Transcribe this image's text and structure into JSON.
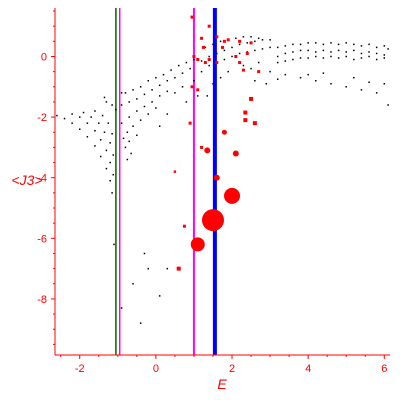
{
  "chart_data": {
    "type": "scatter",
    "xlabel": "E",
    "ylabel": "<J3>",
    "xlim": [
      -2.65,
      6.15
    ],
    "ylim": [
      -9.85,
      1.6
    ],
    "xticks": [
      -2,
      0,
      2,
      4,
      6
    ],
    "yticks": [
      0,
      -2,
      -4,
      -6,
      -8
    ],
    "grid": false,
    "colors": {
      "axis": "#ff0000",
      "black_series": "#000000",
      "red_series": "#ff0000"
    },
    "vlines": [
      {
        "x": -1.05,
        "color": "#006400",
        "width": 1.5
      },
      {
        "x": -0.95,
        "color": "#ff00ff",
        "width": 1.5
      },
      {
        "x": 1.0,
        "color": "#ff00ff",
        "width": 2
      },
      {
        "x": 1.55,
        "color": "#0000ff",
        "width": 4
      }
    ],
    "series": [
      {
        "color": "#000000",
        "points": [
          [
            -2.6,
            -1.95
          ],
          [
            -2.4,
            -2.05
          ],
          [
            -2.2,
            -2.2
          ],
          [
            -2.0,
            -2.4
          ],
          [
            -1.8,
            -2.65
          ],
          [
            -1.6,
            -2.95
          ],
          [
            -1.45,
            -3.3
          ],
          [
            -1.3,
            -3.7
          ],
          [
            -1.2,
            -4.1
          ],
          [
            -1.15,
            -4.5
          ],
          [
            -2.2,
            -1.9
          ],
          [
            -2.0,
            -2.0
          ],
          [
            -1.8,
            -2.2
          ],
          [
            -1.6,
            -2.45
          ],
          [
            -1.45,
            -2.75
          ],
          [
            -1.3,
            -3.1
          ],
          [
            -1.2,
            -3.5
          ],
          [
            -1.12,
            -3.9
          ],
          [
            -1.9,
            -1.85
          ],
          [
            -1.7,
            -2.0
          ],
          [
            -1.5,
            -2.2
          ],
          [
            -1.35,
            -2.5
          ],
          [
            -1.2,
            -2.85
          ],
          [
            -1.12,
            -3.25
          ],
          [
            -1.6,
            -1.8
          ],
          [
            -1.4,
            -1.95
          ],
          [
            -1.25,
            -2.2
          ],
          [
            -1.15,
            -2.55
          ],
          [
            -1.3,
            -1.5
          ],
          [
            -1.15,
            -1.6
          ],
          [
            -1.05,
            -1.75
          ],
          [
            -1.35,
            -1.35
          ],
          [
            -0.8,
            -1.2
          ],
          [
            -0.6,
            -1.1
          ],
          [
            -0.4,
            -1.0
          ],
          [
            -0.2,
            -0.8
          ],
          [
            0.0,
            -0.7
          ],
          [
            0.2,
            -0.6
          ],
          [
            0.4,
            -0.45
          ],
          [
            0.6,
            -0.3
          ],
          [
            0.8,
            -0.2
          ],
          [
            1.0,
            -0.1
          ],
          [
            -0.7,
            -1.5
          ],
          [
            -0.5,
            -1.4
          ],
          [
            -0.3,
            -1.25
          ],
          [
            -0.1,
            -1.1
          ],
          [
            0.1,
            -0.95
          ],
          [
            0.3,
            -0.8
          ],
          [
            0.5,
            -0.7
          ],
          [
            0.7,
            -0.55
          ],
          [
            0.9,
            -0.4
          ],
          [
            -0.7,
            -2.0
          ],
          [
            -0.5,
            -1.8
          ],
          [
            -0.3,
            -1.65
          ],
          [
            -0.1,
            -1.5
          ],
          [
            0.1,
            -1.3
          ],
          [
            0.3,
            -1.15
          ],
          [
            -0.75,
            -2.5
          ],
          [
            -0.6,
            -2.3
          ],
          [
            -0.4,
            -2.1
          ],
          [
            -0.2,
            -1.9
          ],
          [
            0.0,
            -1.7
          ],
          [
            -0.8,
            -3.0
          ],
          [
            -0.7,
            -2.8
          ],
          [
            -0.5,
            -2.6
          ],
          [
            -0.75,
            -3.4
          ],
          [
            -0.65,
            -3.2
          ],
          [
            -0.9,
            -1.2
          ],
          [
            -0.9,
            -1.6
          ],
          [
            -0.9,
            -2.2
          ],
          [
            -0.85,
            -2.7
          ],
          [
            0.5,
            -1.2
          ],
          [
            0.7,
            -1.0
          ],
          [
            0.8,
            -1.5
          ],
          [
            1.0,
            -0.8
          ],
          [
            0.3,
            -1.9
          ],
          [
            0.1,
            -2.3
          ],
          [
            1.2,
            -0.5
          ],
          [
            1.4,
            -0.3
          ],
          [
            1.6,
            -0.2
          ],
          [
            1.8,
            -0.1
          ],
          [
            2.0,
            0.0
          ],
          [
            2.2,
            0.1
          ],
          [
            2.4,
            0.15
          ],
          [
            2.6,
            0.2
          ],
          [
            2.8,
            0.25
          ],
          [
            3.0,
            0.3
          ],
          [
            1.2,
            -0.15
          ],
          [
            1.4,
            0.0
          ],
          [
            1.6,
            0.1
          ],
          [
            1.8,
            0.2
          ],
          [
            2.0,
            0.3
          ],
          [
            2.2,
            0.4
          ],
          [
            2.4,
            0.45
          ],
          [
            2.6,
            0.5
          ],
          [
            2.8,
            0.55
          ],
          [
            3.0,
            0.55
          ],
          [
            1.3,
            0.3
          ],
          [
            1.5,
            0.4
          ],
          [
            1.7,
            0.5
          ],
          [
            1.9,
            0.55
          ],
          [
            2.1,
            0.6
          ],
          [
            2.3,
            0.65
          ],
          [
            2.5,
            0.65
          ],
          [
            2.7,
            0.6
          ],
          [
            3.2,
            0.3
          ],
          [
            3.4,
            0.35
          ],
          [
            3.6,
            0.4
          ],
          [
            3.8,
            0.4
          ],
          [
            4.0,
            0.45
          ],
          [
            4.2,
            0.45
          ],
          [
            4.4,
            0.4
          ],
          [
            4.6,
            0.45
          ],
          [
            4.8,
            0.4
          ],
          [
            5.0,
            0.45
          ],
          [
            5.2,
            0.4
          ],
          [
            5.4,
            0.35
          ],
          [
            5.6,
            0.4
          ],
          [
            5.8,
            0.3
          ],
          [
            6.0,
            0.35
          ],
          [
            6.1,
            0.25
          ],
          [
            3.2,
            0.0
          ],
          [
            3.4,
            0.1
          ],
          [
            3.6,
            0.15
          ],
          [
            3.8,
            0.2
          ],
          [
            4.0,
            0.2
          ],
          [
            4.2,
            0.15
          ],
          [
            4.4,
            0.2
          ],
          [
            4.6,
            0.15
          ],
          [
            4.8,
            0.2
          ],
          [
            5.0,
            0.15
          ],
          [
            5.2,
            0.2
          ],
          [
            5.4,
            0.1
          ],
          [
            5.6,
            0.15
          ],
          [
            5.8,
            0.1
          ],
          [
            6.0,
            0.05
          ],
          [
            3.2,
            -0.2
          ],
          [
            3.4,
            -0.15
          ],
          [
            3.6,
            -0.1
          ],
          [
            3.8,
            -0.05
          ],
          [
            4.0,
            -0.05
          ],
          [
            4.2,
            0.0
          ],
          [
            4.4,
            -0.05
          ],
          [
            4.6,
            0.0
          ],
          [
            4.8,
            -0.05
          ],
          [
            5.0,
            0.0
          ],
          [
            5.2,
            -0.1
          ],
          [
            5.4,
            -0.05
          ],
          [
            5.6,
            0.0
          ],
          [
            5.8,
            -0.1
          ],
          [
            6.0,
            -0.05
          ],
          [
            3.0,
            -0.5
          ],
          [
            3.4,
            -0.6
          ],
          [
            3.8,
            -0.7
          ],
          [
            4.2,
            -0.8
          ],
          [
            4.6,
            -0.9
          ],
          [
            5.0,
            -1.0
          ],
          [
            5.4,
            -1.1
          ],
          [
            5.8,
            -1.2
          ],
          [
            6.1,
            -1.6
          ],
          [
            2.6,
            -0.8
          ],
          [
            2.9,
            -0.9
          ],
          [
            3.2,
            -0.75
          ],
          [
            4.0,
            -0.6
          ],
          [
            4.4,
            -0.55
          ],
          [
            5.2,
            -0.7
          ],
          [
            5.6,
            -0.85
          ],
          [
            6.0,
            -0.9
          ],
          [
            2.3,
            -0.3
          ],
          [
            2.5,
            -0.4
          ],
          [
            2.7,
            -0.2
          ],
          [
            1.9,
            -0.5
          ],
          [
            1.7,
            -0.7
          ],
          [
            1.5,
            -0.9
          ],
          [
            1.35,
            -1.3
          ],
          [
            1.1,
            -1.3
          ],
          [
            -0.2,
            -7.0
          ],
          [
            -0.6,
            -7.5
          ],
          [
            -0.9,
            -8.3
          ],
          [
            -0.4,
            -8.8
          ],
          [
            0.1,
            -7.9
          ],
          [
            0.3,
            -7.0
          ],
          [
            -0.3,
            -6.5
          ],
          [
            -1.1,
            -6.2
          ]
        ]
      },
      {
        "color": "#ff0000",
        "points": [
          [
            1.5,
            -5.4,
            11
          ],
          [
            2.0,
            -4.6,
            8
          ],
          [
            1.1,
            -6.2,
            7
          ],
          [
            1.35,
            -3.1,
            3
          ],
          [
            1.6,
            -4.0,
            3
          ],
          [
            2.1,
            -3.2,
            3
          ],
          [
            1.8,
            -2.5,
            2.5
          ],
          [
            2.35,
            -2.1,
            2
          ],
          [
            2.35,
            -1.85,
            2
          ],
          [
            2.6,
            -2.2,
            2
          ],
          [
            2.5,
            -1.4,
            2
          ],
          [
            0.9,
            -2.2,
            1.5
          ],
          [
            1.2,
            -3.0,
            1.5
          ],
          [
            0.6,
            -7.0,
            2
          ],
          [
            0.75,
            -5.6,
            1.5
          ],
          [
            0.95,
            1.3,
            1.5
          ],
          [
            1.0,
            0.0,
            1.5
          ],
          [
            1.1,
            -0.1,
            1.5
          ],
          [
            1.3,
            -0.2,
            1.5
          ],
          [
            1.2,
            0.6,
            1.5
          ],
          [
            1.6,
            0.65,
            1.5
          ],
          [
            1.8,
            0.5,
            1.5
          ],
          [
            1.9,
            0.55,
            1.5
          ],
          [
            2.2,
            0.5,
            1.5
          ],
          [
            2.5,
            0.45,
            1.5
          ],
          [
            2.1,
            0.0,
            1.5
          ],
          [
            2.2,
            -0.2,
            1.5
          ],
          [
            2.3,
            -0.45,
            1.5
          ],
          [
            1.6,
            -0.2,
            1.5
          ],
          [
            1.4,
            -0.1,
            1.5
          ],
          [
            2.4,
            0.1,
            1.5
          ],
          [
            2.7,
            -0.5,
            1.5
          ],
          [
            1.1,
            -1.1,
            1.5
          ],
          [
            0.95,
            -1.0,
            1.5
          ],
          [
            1.4,
            1.0,
            1.5
          ],
          [
            1.25,
            0.3,
            1.5
          ],
          [
            1.75,
            0.3,
            1.5
          ],
          [
            0.5,
            -3.8,
            1.2
          ]
        ]
      }
    ]
  }
}
